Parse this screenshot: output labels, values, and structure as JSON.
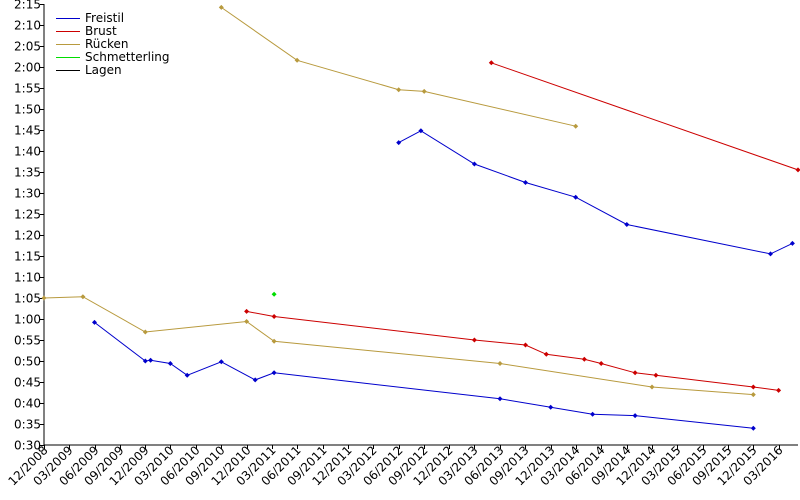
{
  "chart_data": {
    "type": "line",
    "x_axis": {
      "format": "MM/YYYY",
      "range": [
        "2008-12-01",
        "2016-05-10"
      ],
      "tick_labels": [
        "12/2008",
        "03/2009",
        "06/2009",
        "09/2009",
        "12/2009",
        "03/2010",
        "06/2010",
        "09/2010",
        "12/2010",
        "03/2011",
        "06/2011",
        "09/2011",
        "12/2011",
        "03/2012",
        "06/2012",
        "09/2012",
        "12/2012",
        "03/2013",
        "06/2013",
        "09/2013",
        "12/2013",
        "03/2014",
        "06/2014",
        "09/2014",
        "12/2014",
        "03/2015",
        "06/2015",
        "09/2015",
        "12/2015",
        "03/2016"
      ]
    },
    "y_axis": {
      "unit": "m:ss",
      "range": [
        "0:30",
        "2:15"
      ],
      "tick_labels": [
        "0:30",
        "0:35",
        "0:40",
        "0:45",
        "0:50",
        "0:55",
        "1:00",
        "1:05",
        "1:10",
        "1:15",
        "1:20",
        "1:25",
        "1:30",
        "1:35",
        "1:40",
        "1:45",
        "1:50",
        "1:55",
        "2:00",
        "2:05",
        "2:10",
        "2:15"
      ]
    },
    "grid": false,
    "legend_position": "top-left",
    "series": [
      {
        "name": "Freistil",
        "color": "#0000cc",
        "segments": [
          [
            [
              "2009-06-01",
              "0:59.2"
            ],
            [
              "2009-12-01",
              "0:50.0"
            ],
            [
              "2009-12-20",
              "0:50.2"
            ],
            [
              "2010-03-01",
              "0:49.4"
            ],
            [
              "2010-05-01",
              "0:46.6"
            ],
            [
              "2010-09-01",
              "0:49.8"
            ],
            [
              "2011-01-01",
              "0:45.5"
            ],
            [
              "2011-03-10",
              "0:47.2"
            ],
            [
              "2013-06-01",
              "0:41.0"
            ],
            [
              "2013-12-01",
              "0:39.0"
            ],
            [
              "2014-05-01",
              "0:37.3"
            ],
            [
              "2014-10-01",
              "0:37.0"
            ],
            [
              "2015-12-01",
              "0:34.0"
            ]
          ],
          [
            [
              "2012-06-01",
              "1:42.0"
            ],
            [
              "2012-08-20",
              "1:44.8"
            ],
            [
              "2013-03-01",
              "1:36.9"
            ],
            [
              "2013-09-01",
              "1:32.5"
            ],
            [
              "2014-03-01",
              "1:29.0"
            ],
            [
              "2014-09-01",
              "1:22.5"
            ],
            [
              "2016-02-01",
              "1:15.5"
            ],
            [
              "2016-04-20",
              "1:18.0"
            ]
          ]
        ]
      },
      {
        "name": "Brust",
        "color": "#cc0000",
        "segments": [
          [
            [
              "2010-12-01",
              "1:01.8"
            ],
            [
              "2011-03-10",
              "1:00.6"
            ],
            [
              "2013-03-01",
              "0:55.0"
            ],
            [
              "2013-09-01",
              "0:53.8"
            ],
            [
              "2013-11-15",
              "0:51.6"
            ],
            [
              "2014-04-01",
              "0:50.4"
            ],
            [
              "2014-06-01",
              "0:49.4"
            ],
            [
              "2014-10-01",
              "0:47.2"
            ],
            [
              "2014-12-15",
              "0:46.6"
            ],
            [
              "2015-12-01",
              "0:43.8"
            ],
            [
              "2016-03-01",
              "0:43.0"
            ]
          ],
          [
            [
              "2013-05-01",
              "2:01.0"
            ],
            [
              "2016-05-10",
              "1:35.5"
            ]
          ]
        ]
      },
      {
        "name": "Rücken",
        "color": "#b89a3e",
        "segments": [
          [
            [
              "2008-12-01",
              "1:05.0"
            ],
            [
              "2009-04-20",
              "1:05.3"
            ],
            [
              "2009-12-01",
              "0:56.9"
            ],
            [
              "2010-12-01",
              "0:59.4"
            ],
            [
              "2011-03-10",
              "0:54.7"
            ],
            [
              "2013-06-01",
              "0:49.4"
            ],
            [
              "2014-12-01",
              "0:43.8"
            ],
            [
              "2015-12-01",
              "0:42.0"
            ]
          ],
          [
            [
              "2010-09-01",
              "2:14.2"
            ],
            [
              "2011-06-01",
              "2:01.6"
            ],
            [
              "2012-06-01",
              "1:54.6"
            ],
            [
              "2012-09-01",
              "1:54.2"
            ],
            [
              "2014-03-01",
              "1:45.9"
            ]
          ]
        ]
      },
      {
        "name": "Schmetterling",
        "color": "#00dd00",
        "segments": [
          [
            [
              "2011-03-10",
              "1:05.9"
            ]
          ]
        ]
      },
      {
        "name": "Lagen",
        "color": "#000000",
        "segments": []
      }
    ]
  }
}
